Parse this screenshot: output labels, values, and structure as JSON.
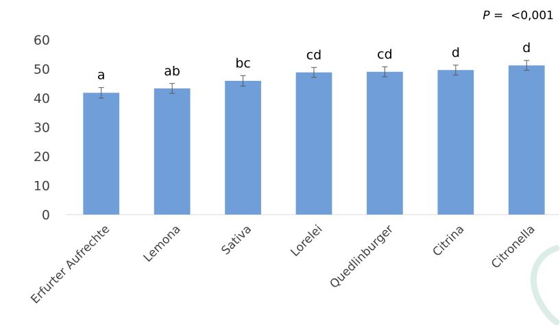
{
  "chart_data": {
    "type": "bar",
    "categories": [
      "Erfurter Aufrechte",
      "Lemona",
      "Sativa",
      "Lorelei",
      "Quedlinburger",
      "Citrina",
      "Citronella"
    ],
    "values": [
      41.8,
      43.3,
      45.9,
      48.8,
      49.0,
      49.6,
      51.2
    ],
    "errors": [
      1.8,
      1.7,
      1.8,
      1.7,
      1.7,
      1.7,
      1.7
    ],
    "significance_letters": [
      "a",
      "ab",
      "bc",
      "cd",
      "cd",
      "d",
      "d"
    ],
    "title": "",
    "xlabel": "",
    "ylabel": "",
    "ylim": [
      0,
      60
    ],
    "yticks": [
      0,
      10,
      20,
      30,
      40,
      50,
      60
    ],
    "grid": false,
    "annotation": {
      "prefix": "P",
      "text": " =  <0,001"
    },
    "colors": {
      "bar": "#6f9ed8",
      "error_bar": "#595959",
      "axis": "#d9d9d9",
      "decoration": "#dcede8"
    }
  }
}
